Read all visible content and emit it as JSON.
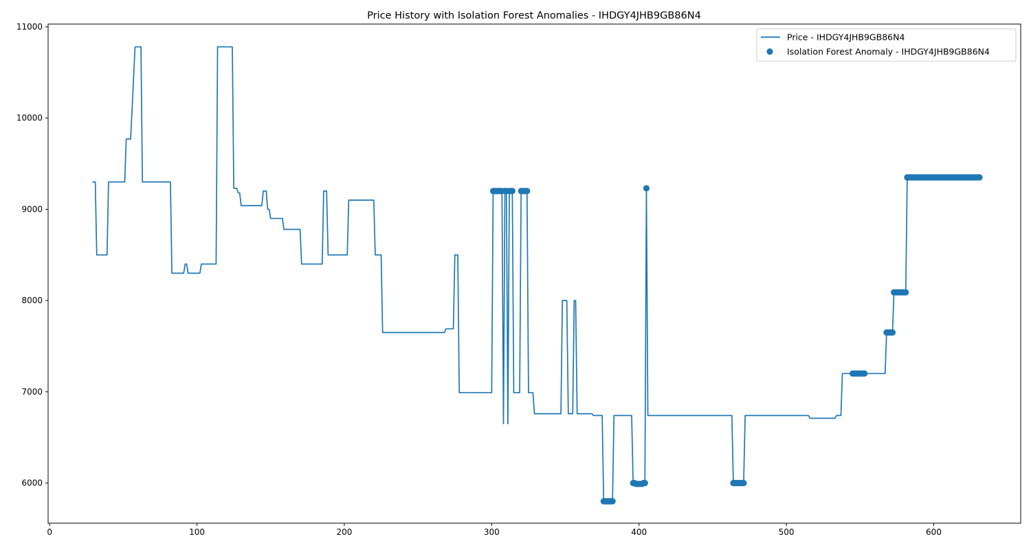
{
  "chart_data": {
    "type": "line",
    "title": "Price History with Isolation Forest Anomalies - IHDGY4JHB9GB86N4",
    "xlabel": "",
    "ylabel": "",
    "xlim": [
      -1,
      659
    ],
    "ylim": [
      5560,
      11030
    ],
    "x_ticks": [
      0,
      100,
      200,
      300,
      400,
      500,
      600
    ],
    "y_ticks": [
      6000,
      7000,
      8000,
      9000,
      10000,
      11000
    ],
    "grid": false,
    "legend_position": "top-right",
    "color": "#1f77b4",
    "series": [
      {
        "name": "Price - IHDGY4JHB9GB86N4",
        "kind": "line",
        "points": [
          [
            29,
            9300
          ],
          [
            31,
            9300
          ],
          [
            32,
            8500
          ],
          [
            39,
            8500
          ],
          [
            40,
            9300
          ],
          [
            51,
            9300
          ],
          [
            52,
            9770
          ],
          [
            55,
            9770
          ],
          [
            56,
            10100
          ],
          [
            58,
            10780
          ],
          [
            62,
            10780
          ],
          [
            63,
            9300
          ],
          [
            82,
            9300
          ],
          [
            83,
            8300
          ],
          [
            91,
            8300
          ],
          [
            92,
            8400
          ],
          [
            93,
            8400
          ],
          [
            94,
            8300
          ],
          [
            102,
            8300
          ],
          [
            103,
            8400
          ],
          [
            113,
            8400
          ],
          [
            114,
            10780
          ],
          [
            124,
            10780
          ],
          [
            125,
            9230
          ],
          [
            127,
            9230
          ],
          [
            128,
            9180
          ],
          [
            129,
            9180
          ],
          [
            130,
            9040
          ],
          [
            144,
            9040
          ],
          [
            145,
            9200
          ],
          [
            147,
            9200
          ],
          [
            148,
            9000
          ],
          [
            149,
            9000
          ],
          [
            150,
            8900
          ],
          [
            158,
            8900
          ],
          [
            159,
            8780
          ],
          [
            170,
            8780
          ],
          [
            171,
            8400
          ],
          [
            185,
            8400
          ],
          [
            186,
            9200
          ],
          [
            188,
            9200
          ],
          [
            189,
            8500
          ],
          [
            202,
            8500
          ],
          [
            203,
            9100
          ],
          [
            220,
            9100
          ],
          [
            221,
            8500
          ],
          [
            225,
            8500
          ],
          [
            226,
            7650
          ],
          [
            268,
            7650
          ],
          [
            269,
            7690
          ],
          [
            274,
            7690
          ],
          [
            275,
            8500
          ],
          [
            277,
            8500
          ],
          [
            278,
            6990
          ],
          [
            300,
            6990
          ],
          [
            301,
            9200
          ],
          [
            307,
            9200
          ],
          [
            308,
            6650
          ],
          [
            309,
            9200
          ],
          [
            310,
            9200
          ],
          [
            311,
            6650
          ],
          [
            312,
            9200
          ],
          [
            314,
            9200
          ],
          [
            315,
            6990
          ],
          [
            319,
            6990
          ],
          [
            320,
            9200
          ],
          [
            324,
            9200
          ],
          [
            325,
            6990
          ],
          [
            328,
            6990
          ],
          [
            329,
            6760
          ],
          [
            347,
            6760
          ],
          [
            348,
            8000
          ],
          [
            351,
            8000
          ],
          [
            352,
            6760
          ],
          [
            355,
            6760
          ],
          [
            356,
            8000
          ],
          [
            357,
            8000
          ],
          [
            358,
            6760
          ],
          [
            368,
            6760
          ],
          [
            369,
            6740
          ],
          [
            375,
            6740
          ],
          [
            376,
            5800
          ],
          [
            382,
            5800
          ],
          [
            383,
            6740
          ],
          [
            395,
            6740
          ],
          [
            396,
            6000
          ],
          [
            404,
            6000
          ],
          [
            405,
            9230
          ],
          [
            406,
            6740
          ],
          [
            463,
            6740
          ],
          [
            464,
            6000
          ],
          [
            471,
            6000
          ],
          [
            472,
            6740
          ],
          [
            515,
            6740
          ],
          [
            516,
            6710
          ],
          [
            533,
            6710
          ],
          [
            534,
            6740
          ],
          [
            537,
            6740
          ],
          [
            538,
            7200
          ],
          [
            567,
            7200
          ],
          [
            568,
            7650
          ],
          [
            572,
            7650
          ],
          [
            573,
            8090
          ],
          [
            581,
            8090
          ],
          [
            582,
            9350
          ],
          [
            631,
            9350
          ]
        ]
      },
      {
        "name": "Isolation Forest Anomaly - IHDGY4JHB9GB86N4",
        "kind": "scatter",
        "points": [
          [
            301,
            9200
          ],
          [
            302,
            9200
          ],
          [
            303,
            9200
          ],
          [
            304,
            9200
          ],
          [
            305,
            9200
          ],
          [
            306,
            9200
          ],
          [
            307,
            9200
          ],
          [
            309,
            9200
          ],
          [
            310,
            9200
          ],
          [
            312,
            9200
          ],
          [
            313,
            9200
          ],
          [
            314,
            9200
          ],
          [
            320,
            9200
          ],
          [
            321,
            9200
          ],
          [
            322,
            9200
          ],
          [
            323,
            9200
          ],
          [
            324,
            9200
          ],
          [
            376,
            5800
          ],
          [
            377,
            5800
          ],
          [
            378,
            5800
          ],
          [
            379,
            5800
          ],
          [
            380,
            5800
          ],
          [
            381,
            5800
          ],
          [
            382,
            5800
          ],
          [
            396,
            6000
          ],
          [
            397,
            6000
          ],
          [
            398,
            5990
          ],
          [
            399,
            5990
          ],
          [
            400,
            5990
          ],
          [
            401,
            5990
          ],
          [
            402,
            5990
          ],
          [
            403,
            6000
          ],
          [
            404,
            6000
          ],
          [
            405,
            9230
          ],
          [
            464,
            6000
          ],
          [
            465,
            6000
          ],
          [
            466,
            6000
          ],
          [
            467,
            6000
          ],
          [
            468,
            6000
          ],
          [
            469,
            6000
          ],
          [
            470,
            6000
          ],
          [
            471,
            6000
          ],
          [
            545,
            7200
          ],
          [
            546,
            7200
          ],
          [
            547,
            7200
          ],
          [
            548,
            7200
          ],
          [
            549,
            7200
          ],
          [
            550,
            7200
          ],
          [
            551,
            7200
          ],
          [
            552,
            7200
          ],
          [
            553,
            7200
          ],
          [
            568,
            7650
          ],
          [
            569,
            7650
          ],
          [
            570,
            7650
          ],
          [
            571,
            7650
          ],
          [
            572,
            7650
          ],
          [
            573,
            8090
          ],
          [
            574,
            8090
          ],
          [
            575,
            8090
          ],
          [
            576,
            8090
          ],
          [
            577,
            8090
          ],
          [
            578,
            8090
          ],
          [
            579,
            8090
          ],
          [
            580,
            8090
          ],
          [
            581,
            8090
          ],
          [
            582,
            9350
          ],
          [
            583,
            9350
          ],
          [
            584,
            9350
          ],
          [
            585,
            9350
          ],
          [
            586,
            9350
          ],
          [
            587,
            9350
          ],
          [
            588,
            9350
          ],
          [
            589,
            9350
          ],
          [
            590,
            9350
          ],
          [
            591,
            9350
          ],
          [
            592,
            9350
          ],
          [
            593,
            9350
          ],
          [
            594,
            9350
          ],
          [
            595,
            9350
          ],
          [
            596,
            9350
          ],
          [
            597,
            9350
          ],
          [
            598,
            9350
          ],
          [
            599,
            9350
          ],
          [
            600,
            9350
          ],
          [
            601,
            9350
          ],
          [
            602,
            9350
          ],
          [
            603,
            9350
          ],
          [
            604,
            9350
          ],
          [
            605,
            9350
          ],
          [
            606,
            9350
          ],
          [
            607,
            9350
          ],
          [
            608,
            9350
          ],
          [
            609,
            9350
          ],
          [
            610,
            9350
          ],
          [
            611,
            9350
          ],
          [
            612,
            9350
          ],
          [
            613,
            9350
          ],
          [
            614,
            9350
          ],
          [
            615,
            9350
          ],
          [
            616,
            9350
          ],
          [
            617,
            9350
          ],
          [
            618,
            9350
          ],
          [
            619,
            9350
          ],
          [
            620,
            9350
          ],
          [
            621,
            9350
          ],
          [
            622,
            9350
          ],
          [
            623,
            9350
          ],
          [
            624,
            9350
          ],
          [
            625,
            9350
          ],
          [
            626,
            9350
          ],
          [
            627,
            9350
          ],
          [
            628,
            9350
          ],
          [
            629,
            9350
          ],
          [
            630,
            9350
          ],
          [
            631,
            9350
          ]
        ]
      }
    ]
  }
}
